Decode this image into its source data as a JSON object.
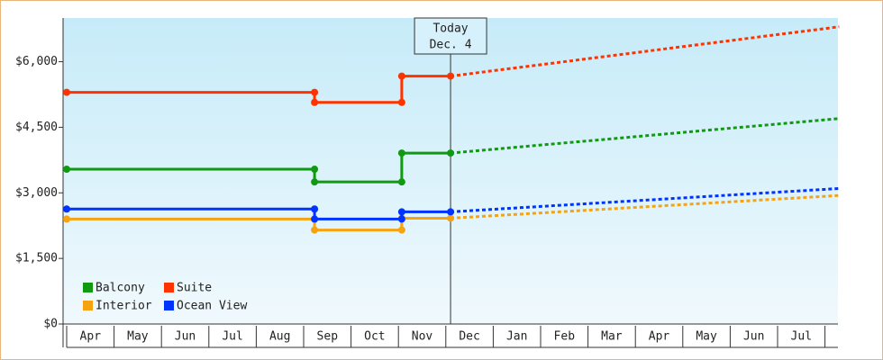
{
  "chart_data": {
    "type": "line",
    "categories": [
      "Apr",
      "May",
      "Jun",
      "Jul",
      "Aug",
      "Sep",
      "Oct",
      "Nov",
      "Dec",
      "Jan",
      "Feb",
      "Mar",
      "Apr",
      "May",
      "Jun",
      "Jul"
    ],
    "xlim": [
      0,
      16.3
    ],
    "ylim": [
      0,
      7000
    ],
    "yticks": [
      {
        "value": 0,
        "label": "$0"
      },
      {
        "value": 1500,
        "label": "$1,500"
      },
      {
        "value": 3000,
        "label": "$3,000"
      },
      {
        "value": 4500,
        "label": "$4,500"
      },
      {
        "value": 6000,
        "label": "$6,000"
      }
    ],
    "annotation": {
      "lines": [
        "Today",
        "Dec. 4"
      ],
      "x": 8.1
    },
    "legend": "bottom-left",
    "series": [
      {
        "name": "Balcony",
        "color": "#119911",
        "x": [
          0,
          5.23,
          7.07,
          8.1
        ],
        "values": [
          3540,
          3250,
          3910,
          3910
        ],
        "forecast_x": [
          8.1,
          16.3
        ],
        "forecast_values": [
          3910,
          4700
        ]
      },
      {
        "name": "Suite",
        "color": "#ff3300",
        "x": [
          0,
          5.23,
          7.07,
          8.1
        ],
        "values": [
          5300,
          5070,
          5670,
          5670
        ],
        "forecast_x": [
          8.1,
          16.3
        ],
        "forecast_values": [
          5670,
          6800
        ]
      },
      {
        "name": "Interior",
        "color": "#f5a310",
        "x": [
          0,
          5.23,
          7.07,
          8.1
        ],
        "values": [
          2400,
          2150,
          2420,
          2420
        ],
        "forecast_x": [
          8.1,
          16.3
        ],
        "forecast_values": [
          2420,
          2940
        ]
      },
      {
        "name": "Ocean View",
        "color": "#0033ff",
        "x": [
          0,
          5.23,
          7.07,
          8.1
        ],
        "values": [
          2630,
          2400,
          2565,
          2565
        ],
        "forecast_x": [
          8.1,
          16.3
        ],
        "forecast_values": [
          2565,
          3100
        ]
      }
    ]
  }
}
